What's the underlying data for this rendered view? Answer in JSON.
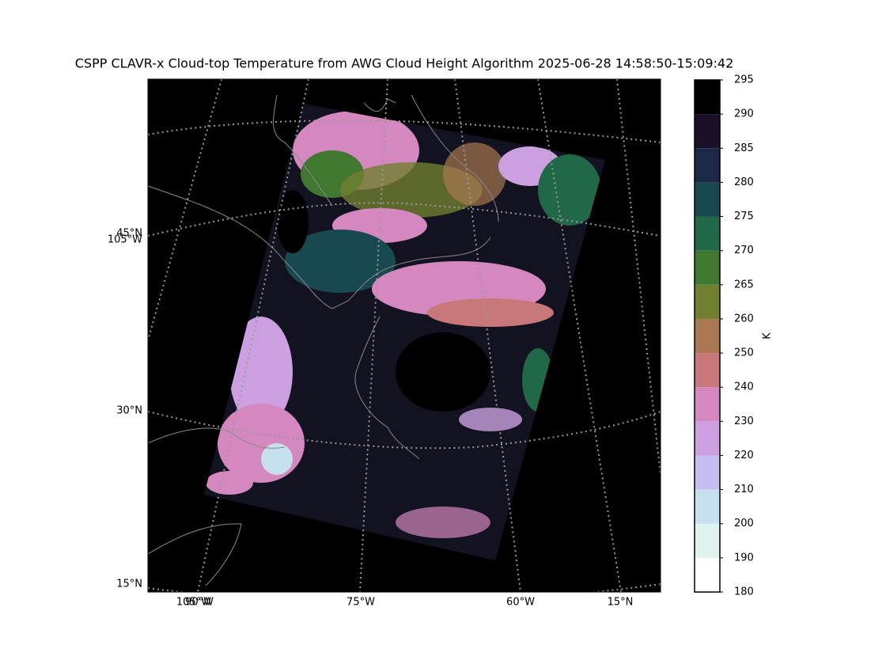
{
  "title": "CSPP CLAVR-x Cloud-top Temperature from AWG Cloud Height Algorithm 2025-06-28 14:58:50-15:09:42",
  "map": {
    "left_labels": [
      "45°N",
      "105°W",
      "30°N",
      "15°N"
    ],
    "bottom_labels": [
      "105°W",
      "90°W",
      "75°W",
      "60°W",
      "15°N"
    ]
  },
  "colorbar": {
    "label": "K",
    "ticks": [
      180,
      190,
      200,
      210,
      220,
      230,
      240,
      250,
      260,
      265,
      270,
      275,
      280,
      285,
      290,
      295
    ],
    "colors": [
      "#ffffff",
      "#ddf2ec",
      "#c6e0f0",
      "#c3c0f0",
      "#cca0e0",
      "#d588c0",
      "#c87878",
      "#a87850",
      "#708030",
      "#407830",
      "#206848",
      "#184850",
      "#1c2848",
      "#1c1028",
      "#000000"
    ]
  }
}
